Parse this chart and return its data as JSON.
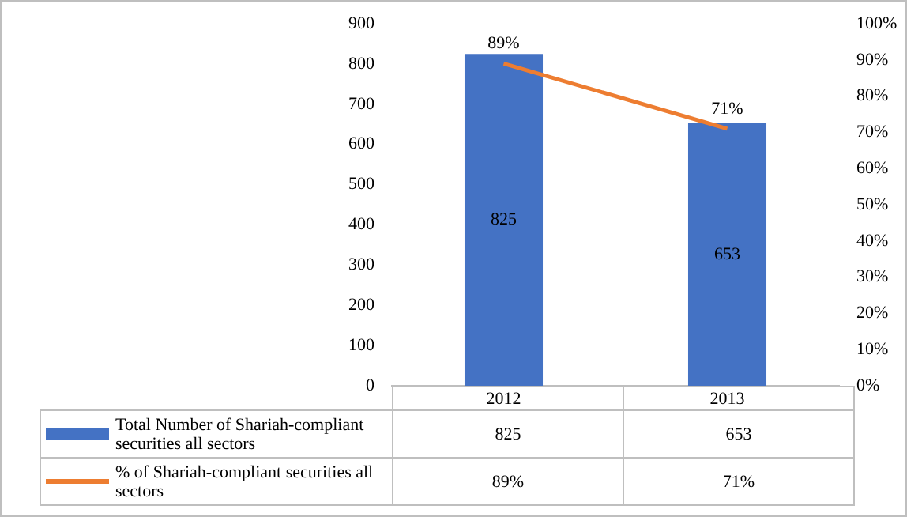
{
  "chart_data": {
    "type": "bar",
    "categories": [
      "2012",
      "2013"
    ],
    "series": [
      {
        "name": "Total Number of Shariah-compliant securities all sectors",
        "color": "#4472c4",
        "values": [
          825,
          653
        ],
        "value_labels": [
          "825",
          "653"
        ]
      },
      {
        "name": "% of Shariah-compliant securities all sectors",
        "type": "line",
        "axis": "y2",
        "color": "#ed7d31",
        "values": [
          89,
          71
        ],
        "value_labels": [
          "89%",
          "71%"
        ]
      }
    ],
    "ylim": [
      0,
      900
    ],
    "yticks": [
      0,
      100,
      200,
      300,
      400,
      500,
      600,
      700,
      800,
      900
    ],
    "y2lim": [
      0,
      100
    ],
    "y2ticks": [
      {
        "value": 0,
        "label": "0%"
      },
      {
        "value": 10,
        "label": "10%"
      },
      {
        "value": 20,
        "label": "20%"
      },
      {
        "value": 30,
        "label": "30%"
      },
      {
        "value": 40,
        "label": "40%"
      },
      {
        "value": 50,
        "label": "50%"
      },
      {
        "value": 60,
        "label": "60%"
      },
      {
        "value": 70,
        "label": "70%"
      },
      {
        "value": 80,
        "label": "80%"
      },
      {
        "value": 90,
        "label": "90%"
      },
      {
        "value": 100,
        "label": "100%"
      }
    ],
    "grid": false,
    "legend": "bottom",
    "marker": "none",
    "line_style": "solid"
  }
}
